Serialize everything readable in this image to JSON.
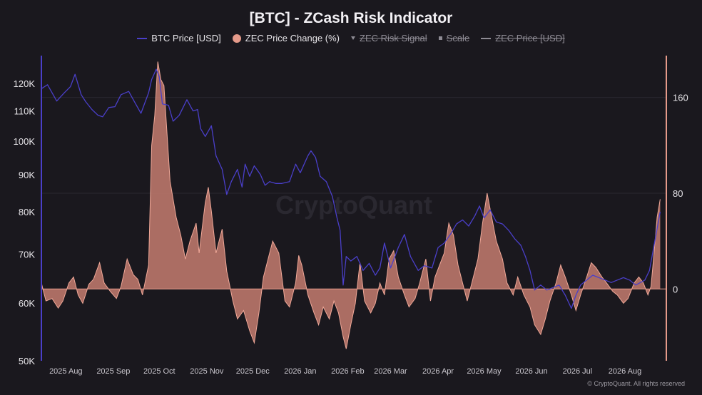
{
  "title": "[BTC] - ZCash Risk Indicator",
  "watermark": "CryptoQuant",
  "copyright": "© CryptoQuant. All rights reserved",
  "legend": [
    {
      "label": "BTC Price [USD]",
      "color": "#4a3fc9",
      "shape": "line",
      "active": true
    },
    {
      "label": "ZEC Price Change (%)",
      "color": "#e59a8a",
      "shape": "circle",
      "active": true
    },
    {
      "label": "ZEC Risk Signal",
      "color": "#8e8b94",
      "shape": "triangle-down",
      "active": false
    },
    {
      "label": "Scale",
      "color": "#8e8b94",
      "shape": "square",
      "active": false
    },
    {
      "label": "ZEC Price [USD]",
      "color": "#8e8b94",
      "shape": "line",
      "active": false
    }
  ],
  "chart_data": {
    "type": "line",
    "title": "[BTC] - ZCash Risk Indicator",
    "x_ticks": [
      "2025 Aug",
      "2025 Sep",
      "2025 Oct",
      "2025 Nov",
      "2025 Dec",
      "2026 Jan",
      "2026 Feb",
      "2026 Mar",
      "2026 Apr",
      "2026 May",
      "2026 Jun",
      "2026 Jul",
      "2026 Aug"
    ],
    "x_range": [
      "2025-07-23",
      "2026-09-04"
    ],
    "y_left": {
      "scale": "log",
      "ticks": [
        50000,
        60000,
        70000,
        80000,
        90000,
        100000,
        110000,
        120000
      ],
      "tick_labels": [
        "50K",
        "60K",
        "70K",
        "80K",
        "90K",
        "100K",
        "110K",
        "120K"
      ],
      "range": [
        50000,
        131000
      ]
    },
    "y_right": {
      "ticks": [
        0,
        80,
        160
      ],
      "tick_labels": [
        "0",
        "80",
        "160"
      ],
      "range": [
        -60,
        195
      ]
    },
    "grid": "horizontal",
    "series": [
      {
        "name": "BTC Price [USD]",
        "axis": "left",
        "color": "#4a3fc9",
        "points": [
          [
            "2025-07-23",
            118000
          ],
          [
            "2025-07-27",
            119500
          ],
          [
            "2025-08-02",
            113500
          ],
          [
            "2025-08-07",
            116500
          ],
          [
            "2025-08-11",
            118800
          ],
          [
            "2025-08-14",
            123500
          ],
          [
            "2025-08-18",
            115800
          ],
          [
            "2025-08-21",
            113200
          ],
          [
            "2025-08-25",
            110500
          ],
          [
            "2025-08-29",
            108500
          ],
          [
            "2025-09-01",
            108000
          ],
          [
            "2025-09-05",
            111200
          ],
          [
            "2025-09-09",
            111500
          ],
          [
            "2025-09-13",
            115800
          ],
          [
            "2025-09-18",
            117000
          ],
          [
            "2025-09-22",
            113000
          ],
          [
            "2025-09-26",
            109200
          ],
          [
            "2025-10-01",
            116500
          ],
          [
            "2025-10-03",
            121500
          ],
          [
            "2025-10-06",
            125500
          ],
          [
            "2025-10-08",
            122500
          ],
          [
            "2025-10-10",
            112500
          ],
          [
            "2025-10-14",
            112000
          ],
          [
            "2025-10-17",
            106500
          ],
          [
            "2025-10-21",
            108500
          ],
          [
            "2025-10-26",
            114000
          ],
          [
            "2025-10-30",
            110000
          ],
          [
            "2025-11-02",
            110500
          ],
          [
            "2025-11-04",
            104000
          ],
          [
            "2025-11-07",
            101500
          ],
          [
            "2025-11-11",
            105000
          ],
          [
            "2025-11-14",
            95500
          ],
          [
            "2025-11-18",
            91500
          ],
          [
            "2025-11-21",
            84500
          ],
          [
            "2025-11-24",
            88000
          ],
          [
            "2025-11-28",
            91500
          ],
          [
            "2025-12-01",
            86500
          ],
          [
            "2025-12-03",
            93000
          ],
          [
            "2025-12-06",
            89500
          ],
          [
            "2025-12-09",
            92500
          ],
          [
            "2025-12-13",
            90000
          ],
          [
            "2025-12-16",
            87000
          ],
          [
            "2025-12-19",
            88000
          ],
          [
            "2025-12-23",
            87500
          ],
          [
            "2025-12-27",
            87500
          ],
          [
            "2026-01-01",
            88000
          ],
          [
            "2026-01-05",
            93000
          ],
          [
            "2026-01-08",
            90500
          ],
          [
            "2026-01-13",
            95500
          ],
          [
            "2026-01-15",
            97000
          ],
          [
            "2026-01-18",
            95000
          ],
          [
            "2026-01-21",
            89500
          ],
          [
            "2026-01-25",
            88000
          ],
          [
            "2026-01-29",
            84000
          ],
          [
            "2026-02-01",
            78500
          ],
          [
            "2026-02-03",
            75500
          ],
          [
            "2026-02-05",
            63500
          ],
          [
            "2026-02-07",
            69500
          ],
          [
            "2026-02-10",
            68500
          ],
          [
            "2026-02-14",
            69500
          ],
          [
            "2026-02-18",
            66500
          ],
          [
            "2026-02-22",
            68000
          ],
          [
            "2026-02-26",
            65500
          ],
          [
            "2026-03-01",
            67000
          ],
          [
            "2026-03-04",
            72500
          ],
          [
            "2026-03-08",
            67000
          ],
          [
            "2026-03-13",
            71500
          ],
          [
            "2026-03-17",
            74500
          ],
          [
            "2026-03-21",
            69500
          ],
          [
            "2026-03-26",
            66500
          ],
          [
            "2026-03-30",
            67500
          ],
          [
            "2026-04-04",
            67000
          ],
          [
            "2026-04-08",
            71500
          ],
          [
            "2026-04-12",
            72500
          ],
          [
            "2026-04-16",
            74500
          ],
          [
            "2026-04-20",
            77000
          ],
          [
            "2026-04-24",
            78000
          ],
          [
            "2026-04-28",
            76500
          ],
          [
            "2026-05-02",
            79000
          ],
          [
            "2026-05-05",
            81500
          ],
          [
            "2026-05-08",
            78500
          ],
          [
            "2026-05-12",
            80500
          ],
          [
            "2026-05-16",
            77500
          ],
          [
            "2026-05-20",
            77000
          ],
          [
            "2026-05-24",
            75500
          ],
          [
            "2026-05-28",
            73500
          ],
          [
            "2026-06-01",
            72000
          ],
          [
            "2026-06-04",
            69500
          ],
          [
            "2026-06-07",
            66500
          ],
          [
            "2026-06-10",
            62500
          ],
          [
            "2026-06-14",
            63500
          ],
          [
            "2026-06-18",
            62500
          ],
          [
            "2026-06-22",
            63000
          ],
          [
            "2026-06-26",
            63500
          ],
          [
            "2026-06-30",
            61500
          ],
          [
            "2026-07-04",
            59000
          ],
          [
            "2026-07-07",
            61500
          ],
          [
            "2026-07-10",
            63500
          ],
          [
            "2026-07-14",
            64500
          ],
          [
            "2026-07-18",
            65500
          ],
          [
            "2026-07-22",
            65000
          ],
          [
            "2026-07-26",
            64500
          ],
          [
            "2026-07-30",
            64000
          ],
          [
            "2026-08-03",
            64500
          ],
          [
            "2026-08-07",
            65000
          ],
          [
            "2026-08-11",
            64500
          ],
          [
            "2026-08-15",
            63500
          ],
          [
            "2026-08-18",
            64000
          ],
          [
            "2026-08-21",
            64500
          ],
          [
            "2026-08-24",
            66500
          ],
          [
            "2026-08-27",
            72000
          ],
          [
            "2026-08-31",
            80000
          ]
        ]
      },
      {
        "name": "ZEC Price Change (%)",
        "axis": "right",
        "color": "#e59a8a",
        "fill": "area",
        "points": [
          [
            "2025-07-23",
            5
          ],
          [
            "2025-07-26",
            -10
          ],
          [
            "2025-07-30",
            -8
          ],
          [
            "2025-08-03",
            -16
          ],
          [
            "2025-08-06",
            -10
          ],
          [
            "2025-08-10",
            5
          ],
          [
            "2025-08-13",
            10
          ],
          [
            "2025-08-16",
            -5
          ],
          [
            "2025-08-19",
            -12
          ],
          [
            "2025-08-23",
            4
          ],
          [
            "2025-08-26",
            8
          ],
          [
            "2025-08-30",
            22
          ],
          [
            "2025-09-02",
            5
          ],
          [
            "2025-09-06",
            -2
          ],
          [
            "2025-09-10",
            -8
          ],
          [
            "2025-09-13",
            2
          ],
          [
            "2025-09-17",
            25
          ],
          [
            "2025-09-21",
            12
          ],
          [
            "2025-09-24",
            8
          ],
          [
            "2025-09-27",
            -5
          ],
          [
            "2025-10-01",
            20
          ],
          [
            "2025-10-03",
            120
          ],
          [
            "2025-10-05",
            145
          ],
          [
            "2025-10-07",
            190
          ],
          [
            "2025-10-09",
            175
          ],
          [
            "2025-10-11",
            170
          ],
          [
            "2025-10-13",
            130
          ],
          [
            "2025-10-15",
            90
          ],
          [
            "2025-10-19",
            60
          ],
          [
            "2025-10-22",
            45
          ],
          [
            "2025-10-25",
            25
          ],
          [
            "2025-10-28",
            40
          ],
          [
            "2025-11-01",
            55
          ],
          [
            "2025-11-03",
            30
          ],
          [
            "2025-11-07",
            72
          ],
          [
            "2025-11-09",
            85
          ],
          [
            "2025-11-11",
            65
          ],
          [
            "2025-11-14",
            30
          ],
          [
            "2025-11-18",
            50
          ],
          [
            "2025-11-21",
            15
          ],
          [
            "2025-11-25",
            -10
          ],
          [
            "2025-11-28",
            -25
          ],
          [
            "2025-12-02",
            -18
          ],
          [
            "2025-12-06",
            -35
          ],
          [
            "2025-12-09",
            -45
          ],
          [
            "2025-12-12",
            -20
          ],
          [
            "2025-12-15",
            10
          ],
          [
            "2025-12-18",
            25
          ],
          [
            "2025-12-21",
            40
          ],
          [
            "2025-12-25",
            30
          ],
          [
            "2025-12-29",
            -10
          ],
          [
            "2026-01-01",
            -15
          ],
          [
            "2026-01-05",
            5
          ],
          [
            "2026-01-07",
            28
          ],
          [
            "2026-01-09",
            20
          ],
          [
            "2026-01-13",
            -5
          ],
          [
            "2026-01-17",
            -20
          ],
          [
            "2026-01-20",
            -30
          ],
          [
            "2026-01-23",
            -15
          ],
          [
            "2026-01-27",
            -25
          ],
          [
            "2026-01-30",
            -10
          ],
          [
            "2026-02-02",
            -20
          ],
          [
            "2026-02-05",
            -40
          ],
          [
            "2026-02-07",
            -50
          ],
          [
            "2026-02-10",
            -30
          ],
          [
            "2026-02-13",
            -12
          ],
          [
            "2026-02-16",
            22
          ],
          [
            "2026-02-19",
            -10
          ],
          [
            "2026-02-23",
            -20
          ],
          [
            "2026-02-26",
            -12
          ],
          [
            "2026-03-01",
            5
          ],
          [
            "2026-03-04",
            -5
          ],
          [
            "2026-03-07",
            25
          ],
          [
            "2026-03-10",
            32
          ],
          [
            "2026-03-13",
            10
          ],
          [
            "2026-03-17",
            -5
          ],
          [
            "2026-03-20",
            -15
          ],
          [
            "2026-03-24",
            -8
          ],
          [
            "2026-03-27",
            5
          ],
          [
            "2026-03-31",
            25
          ],
          [
            "2026-04-03",
            -10
          ],
          [
            "2026-04-06",
            10
          ],
          [
            "2026-04-09",
            20
          ],
          [
            "2026-04-12",
            30
          ],
          [
            "2026-04-15",
            55
          ],
          [
            "2026-04-18",
            45
          ],
          [
            "2026-04-21",
            20
          ],
          [
            "2026-04-24",
            5
          ],
          [
            "2026-04-27",
            -10
          ],
          [
            "2026-05-01",
            10
          ],
          [
            "2026-05-04",
            25
          ],
          [
            "2026-05-07",
            55
          ],
          [
            "2026-05-10",
            80
          ],
          [
            "2026-05-13",
            60
          ],
          [
            "2026-05-16",
            40
          ],
          [
            "2026-05-20",
            25
          ],
          [
            "2026-05-23",
            5
          ],
          [
            "2026-05-27",
            -5
          ],
          [
            "2026-05-30",
            10
          ],
          [
            "2026-06-03",
            -5
          ],
          [
            "2026-06-07",
            -15
          ],
          [
            "2026-06-10",
            -30
          ],
          [
            "2026-06-14",
            -38
          ],
          [
            "2026-06-17",
            -25
          ],
          [
            "2026-06-20",
            -10
          ],
          [
            "2026-06-24",
            5
          ],
          [
            "2026-06-27",
            20
          ],
          [
            "2026-06-30",
            10
          ],
          [
            "2026-07-04",
            -5
          ],
          [
            "2026-07-07",
            -18
          ],
          [
            "2026-07-10",
            -5
          ],
          [
            "2026-07-14",
            10
          ],
          [
            "2026-07-17",
            22
          ],
          [
            "2026-07-20",
            18
          ],
          [
            "2026-07-24",
            10
          ],
          [
            "2026-07-27",
            5
          ],
          [
            "2026-07-31",
            -2
          ],
          [
            "2026-08-03",
            -5
          ],
          [
            "2026-08-07",
            -12
          ],
          [
            "2026-08-10",
            -8
          ],
          [
            "2026-08-14",
            5
          ],
          [
            "2026-08-17",
            10
          ],
          [
            "2026-08-20",
            5
          ],
          [
            "2026-08-23",
            -5
          ],
          [
            "2026-08-25",
            2
          ],
          [
            "2026-08-27",
            30
          ],
          [
            "2026-08-29",
            60
          ],
          [
            "2026-08-31",
            75
          ]
        ]
      }
    ]
  }
}
